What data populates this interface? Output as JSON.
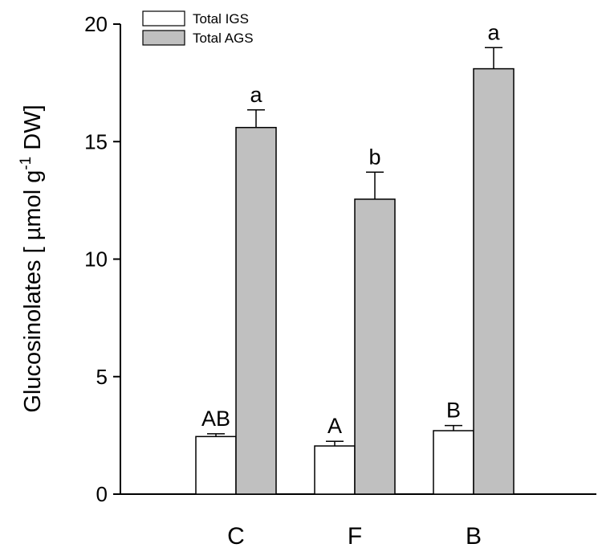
{
  "chart_data": {
    "type": "bar",
    "ylabel_main": "Glucosinolates [ µmol g",
    "ylabel_sup": "-1",
    "ylabel_tail": " DW]",
    "ylim": [
      0,
      20
    ],
    "yticks": [
      0,
      5,
      10,
      15,
      20
    ],
    "categories": [
      "C",
      "F",
      "B"
    ],
    "series": [
      {
        "name": "Total IGS",
        "color": "#ffffff",
        "values": [
          2.45,
          2.05,
          2.7
        ],
        "errors": [
          0.12,
          0.2,
          0.22
        ],
        "significance": [
          "AB",
          "A",
          "B"
        ]
      },
      {
        "name": "Total AGS",
        "color": "#c0c0c0",
        "values": [
          15.6,
          12.55,
          18.1
        ],
        "errors": [
          0.75,
          1.15,
          0.9
        ],
        "significance": [
          "a",
          "b",
          "a"
        ]
      }
    ],
    "legend_position": "top-left",
    "grid": false
  }
}
